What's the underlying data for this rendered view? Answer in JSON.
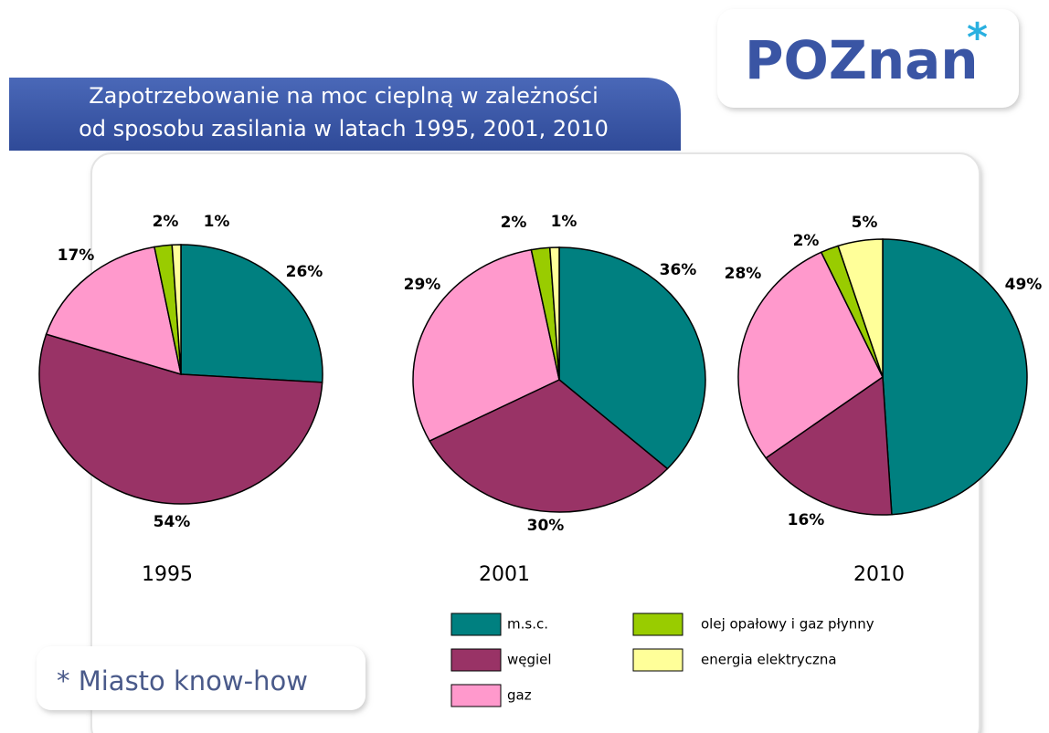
{
  "header": {
    "title": [
      "Zapotrzebowanie na moc cieplną w zależności",
      "od sposobu zasilania w latach 1995, 2001, 2010"
    ],
    "logo": "POZnan"
  },
  "footer": "* Miasto know-how",
  "chart_data": [
    {
      "type": "pie",
      "title": "1995",
      "categories": [
        "m.s.c.",
        "węgiel",
        "gaz",
        "olej opałowy i gaz płynny",
        "energia elektryczna"
      ],
      "colors": [
        "#008080",
        "#993366",
        "#ff99cc",
        "#99cc00",
        "#ffff99"
      ],
      "values": [
        26,
        54,
        17,
        2,
        1
      ],
      "value_labels": [
        "26%",
        "54%",
        "17%",
        "2%",
        "1%"
      ]
    },
    {
      "type": "pie",
      "title": "2001",
      "categories": [
        "m.s.c.",
        "węgiel",
        "gaz",
        "olej opałowy i gaz płynny",
        "energia elektryczna"
      ],
      "colors": [
        "#008080",
        "#993366",
        "#ff99cc",
        "#99cc00",
        "#ffff99"
      ],
      "values": [
        36,
        30,
        29,
        2,
        1
      ],
      "value_labels": [
        "36%",
        "30%",
        "29%",
        "2%",
        "1%"
      ]
    },
    {
      "type": "pie",
      "title": "2010",
      "categories": [
        "m.s.c.",
        "węgiel",
        "gaz",
        "olej opałowy i gaz płynny",
        "energia elektryczna"
      ],
      "colors": [
        "#008080",
        "#993366",
        "#ff99cc",
        "#99cc00",
        "#ffff99"
      ],
      "values": [
        49,
        16,
        28,
        2,
        5
      ],
      "value_labels": [
        "49%",
        "16%",
        "28%",
        "2%",
        "5%"
      ]
    }
  ]
}
